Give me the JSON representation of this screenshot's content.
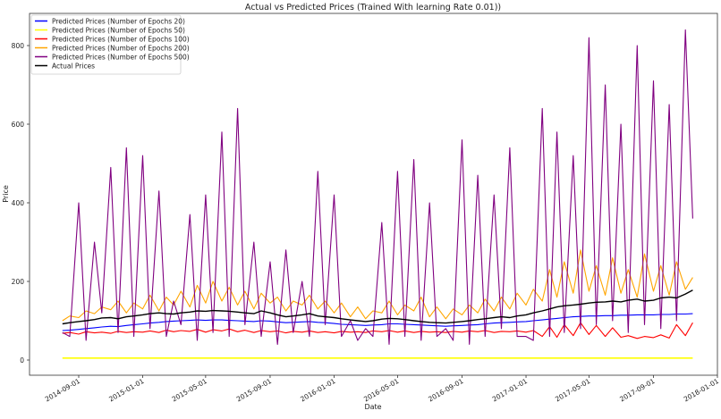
{
  "chart_data": {
    "type": "line",
    "title": "Actual vs Predicted Prices (Trained With learning Rate 0.01))",
    "xlabel": "Date",
    "ylabel": "Price",
    "ylim": [
      -40,
      870
    ],
    "xlim": [
      "2014-06-25",
      "2018-01-05"
    ],
    "grid": false,
    "legend_position": "top-left",
    "yticks": [
      0,
      200,
      400,
      600,
      800
    ],
    "xticks": [
      "2014-09-01",
      "2015-01-01",
      "2015-05-01",
      "2015-09-01",
      "2016-01-01",
      "2016-05-01",
      "2016-09-01",
      "2017-01-01",
      "2017-05-01",
      "2017-09-01",
      "2018-01-01"
    ],
    "x": [
      "2014-08-01",
      "2014-08-15",
      "2014-09-01",
      "2014-09-15",
      "2014-10-01",
      "2014-10-15",
      "2014-11-01",
      "2014-11-15",
      "2014-12-01",
      "2014-12-15",
      "2015-01-01",
      "2015-01-15",
      "2015-02-01",
      "2015-02-15",
      "2015-03-01",
      "2015-03-15",
      "2015-04-01",
      "2015-04-15",
      "2015-05-01",
      "2015-05-15",
      "2015-06-01",
      "2015-06-15",
      "2015-07-01",
      "2015-07-15",
      "2015-08-01",
      "2015-08-15",
      "2015-09-01",
      "2015-09-15",
      "2015-10-01",
      "2015-10-15",
      "2015-11-01",
      "2015-11-15",
      "2015-12-01",
      "2015-12-15",
      "2016-01-01",
      "2016-01-15",
      "2016-02-01",
      "2016-02-15",
      "2016-03-01",
      "2016-03-15",
      "2016-04-01",
      "2016-04-15",
      "2016-05-01",
      "2016-05-15",
      "2016-06-01",
      "2016-06-15",
      "2016-07-01",
      "2016-07-15",
      "2016-08-01",
      "2016-08-15",
      "2016-09-01",
      "2016-09-15",
      "2016-10-01",
      "2016-10-15",
      "2016-11-01",
      "2016-11-15",
      "2016-12-01",
      "2016-12-15",
      "2017-01-01",
      "2017-01-15",
      "2017-02-01",
      "2017-02-15",
      "2017-03-01",
      "2017-03-15",
      "2017-04-01",
      "2017-04-15",
      "2017-05-01",
      "2017-05-15",
      "2017-06-01",
      "2017-06-15",
      "2017-07-01",
      "2017-07-15",
      "2017-08-01",
      "2017-08-15",
      "2017-09-01",
      "2017-09-15",
      "2017-10-01",
      "2017-10-15",
      "2017-11-01",
      "2017-11-15"
    ],
    "series": [
      {
        "name": "Predicted Prices (Number of Epochs 20)",
        "color": "#0000ff",
        "values": [
          75,
          76,
          78,
          80,
          82,
          84,
          86,
          85,
          88,
          90,
          92,
          94,
          96,
          98,
          99,
          100,
          101,
          102,
          101,
          102,
          102,
          101,
          100,
          99,
          98,
          100,
          99,
          97,
          95,
          96,
          97,
          98,
          96,
          95,
          93,
          91,
          90,
          89,
          88,
          89,
          90,
          92,
          92,
          91,
          90,
          89,
          88,
          87,
          86,
          87,
          88,
          89,
          90,
          92,
          94,
          95,
          96,
          97,
          98,
          100,
          102,
          104,
          106,
          108,
          110,
          111,
          112,
          112,
          113,
          113,
          114,
          114,
          115,
          115,
          115,
          116,
          116,
          117,
          117,
          118
        ]
      },
      {
        "name": "Predicted Prices (Number of Epochs 50)",
        "color": "#ffff00",
        "values": [
          5,
          5,
          5,
          5,
          5,
          5,
          5,
          5,
          5,
          5,
          5,
          5,
          5,
          5,
          5,
          5,
          5,
          5,
          5,
          5,
          5,
          5,
          5,
          5,
          5,
          5,
          5,
          5,
          5,
          5,
          5,
          5,
          5,
          5,
          5,
          5,
          5,
          5,
          5,
          5,
          5,
          5,
          5,
          5,
          5,
          5,
          5,
          5,
          5,
          5,
          5,
          5,
          5,
          5,
          5,
          5,
          5,
          5,
          5,
          5,
          5,
          5,
          5,
          5,
          5,
          5,
          5,
          5,
          5,
          5,
          5,
          5,
          5,
          5,
          5,
          5,
          5,
          5,
          5,
          5
        ]
      },
      {
        "name": "Predicted Prices (Number of Epochs 100)",
        "color": "#ff0000",
        "values": [
          68,
          70,
          66,
          72,
          69,
          71,
          68,
          73,
          70,
          72,
          71,
          74,
          70,
          76,
          72,
          75,
          73,
          78,
          71,
          77,
          74,
          79,
          72,
          76,
          70,
          75,
          72,
          74,
          69,
          73,
          71,
          74,
          70,
          72,
          69,
          73,
          71,
          72,
          70,
          74,
          72,
          75,
          71,
          74,
          70,
          73,
          71,
          72,
          70,
          73,
          71,
          74,
          72,
          75,
          70,
          73,
          72,
          74,
          71,
          75,
          60,
          85,
          58,
          90,
          62,
          95,
          65,
          88,
          60,
          82,
          58,
          62,
          55,
          60,
          57,
          64,
          56,
          90,
          62,
          95
        ]
      },
      {
        "name": "Predicted Prices (Number of Epochs 200)",
        "color": "#ffa500",
        "values": [
          100,
          112,
          108,
          125,
          118,
          135,
          128,
          150,
          120,
          145,
          130,
          165,
          125,
          160,
          140,
          175,
          135,
          190,
          145,
          200,
          150,
          185,
          140,
          175,
          130,
          170,
          145,
          160,
          125,
          150,
          140,
          165,
          130,
          150,
          120,
          145,
          110,
          135,
          105,
          125,
          120,
          150,
          115,
          140,
          125,
          160,
          110,
          135,
          105,
          130,
          115,
          140,
          120,
          155,
          125,
          160,
          130,
          170,
          140,
          180,
          150,
          230,
          160,
          250,
          170,
          280,
          175,
          240,
          165,
          260,
          170,
          230,
          160,
          270,
          175,
          240,
          165,
          250,
          180,
          210
        ]
      },
      {
        "name": "Predicted Prices (Number of Epochs 500)",
        "color": "#800080",
        "values": [
          70,
          60,
          400,
          50,
          300,
          120,
          490,
          70,
          540,
          60,
          520,
          80,
          430,
          60,
          150,
          90,
          370,
          50,
          420,
          70,
          580,
          60,
          640,
          90,
          300,
          60,
          250,
          40,
          280,
          70,
          200,
          60,
          480,
          90,
          420,
          60,
          100,
          50,
          80,
          60,
          350,
          40,
          480,
          60,
          510,
          50,
          400,
          60,
          80,
          50,
          560,
          40,
          470,
          60,
          420,
          80,
          540,
          60,
          60,
          50,
          640,
          60,
          580,
          70,
          520,
          80,
          820,
          90,
          700,
          100,
          600,
          70,
          800,
          90,
          710,
          80,
          650,
          100,
          840,
          360
        ]
      },
      {
        "name": "Actual Prices",
        "color": "#000000",
        "values": [
          92,
          95,
          98,
          100,
          103,
          107,
          108,
          105,
          110,
          112,
          115,
          118,
          120,
          118,
          117,
          120,
          122,
          125,
          124,
          126,
          125,
          124,
          122,
          120,
          118,
          125,
          120,
          115,
          110,
          112,
          115,
          118,
          112,
          110,
          108,
          105,
          102,
          100,
          98,
          100,
          104,
          106,
          105,
          103,
          100,
          98,
          96,
          95,
          94,
          96,
          98,
          100,
          103,
          105,
          108,
          110,
          108,
          112,
          115,
          120,
          125,
          130,
          135,
          138,
          140,
          142,
          145,
          147,
          148,
          150,
          148,
          152,
          155,
          150,
          152,
          158,
          160,
          158,
          168,
          178
        ]
      }
    ]
  }
}
